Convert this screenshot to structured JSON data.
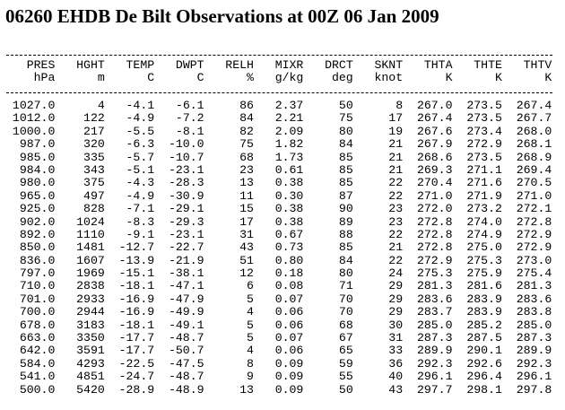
{
  "title": "06260 EHDB De Bilt Observations at 00Z 06 Jan 2009",
  "table": {
    "columns": [
      {
        "name": "PRES",
        "unit": "hPa"
      },
      {
        "name": "HGHT",
        "unit": "m"
      },
      {
        "name": "TEMP",
        "unit": "C"
      },
      {
        "name": "DWPT",
        "unit": "C"
      },
      {
        "name": "RELH",
        "unit": "%"
      },
      {
        "name": "MIXR",
        "unit": "g/kg"
      },
      {
        "name": "DRCT",
        "unit": "deg"
      },
      {
        "name": "SKNT",
        "unit": "knot"
      },
      {
        "name": "THTA",
        "unit": "K"
      },
      {
        "name": "THTE",
        "unit": "K"
      },
      {
        "name": "THTV",
        "unit": "K"
      }
    ],
    "rows": [
      [
        "1027.0",
        "4",
        "-4.1",
        "-6.1",
        "86",
        "2.37",
        "50",
        "8",
        "267.0",
        "273.5",
        "267.4"
      ],
      [
        "1012.0",
        "122",
        "-4.9",
        "-7.2",
        "84",
        "2.21",
        "75",
        "17",
        "267.4",
        "273.5",
        "267.7"
      ],
      [
        "1000.0",
        "217",
        "-5.5",
        "-8.1",
        "82",
        "2.09",
        "80",
        "19",
        "267.6",
        "273.4",
        "268.0"
      ],
      [
        "987.0",
        "320",
        "-6.3",
        "-10.0",
        "75",
        "1.82",
        "84",
        "21",
        "267.9",
        "272.9",
        "268.1"
      ],
      [
        "985.0",
        "335",
        "-5.7",
        "-10.7",
        "68",
        "1.73",
        "85",
        "21",
        "268.6",
        "273.5",
        "268.9"
      ],
      [
        "984.0",
        "343",
        "-5.1",
        "-23.1",
        "23",
        "0.61",
        "85",
        "21",
        "269.3",
        "271.1",
        "269.4"
      ],
      [
        "980.0",
        "375",
        "-4.3",
        "-28.3",
        "13",
        "0.38",
        "85",
        "22",
        "270.4",
        "271.6",
        "270.5"
      ],
      [
        "965.0",
        "497",
        "-4.9",
        "-30.9",
        "11",
        "0.30",
        "87",
        "22",
        "271.0",
        "271.9",
        "271.0"
      ],
      [
        "925.0",
        "828",
        "-7.1",
        "-29.1",
        "15",
        "0.38",
        "90",
        "23",
        "272.0",
        "273.2",
        "272.1"
      ],
      [
        "902.0",
        "1024",
        "-8.3",
        "-29.3",
        "17",
        "0.38",
        "89",
        "23",
        "272.8",
        "274.0",
        "272.8"
      ],
      [
        "892.0",
        "1110",
        "-9.1",
        "-23.1",
        "31",
        "0.67",
        "88",
        "22",
        "272.8",
        "274.9",
        "272.9"
      ],
      [
        "850.0",
        "1481",
        "-12.7",
        "-22.7",
        "43",
        "0.73",
        "85",
        "21",
        "272.8",
        "275.0",
        "272.9"
      ],
      [
        "836.0",
        "1607",
        "-13.9",
        "-21.9",
        "51",
        "0.80",
        "84",
        "22",
        "272.9",
        "275.3",
        "273.0"
      ],
      [
        "797.0",
        "1969",
        "-15.1",
        "-38.1",
        "12",
        "0.18",
        "80",
        "24",
        "275.3",
        "275.9",
        "275.4"
      ],
      [
        "710.0",
        "2838",
        "-18.1",
        "-47.1",
        "6",
        "0.08",
        "71",
        "29",
        "281.3",
        "281.6",
        "281.3"
      ],
      [
        "701.0",
        "2933",
        "-16.9",
        "-47.9",
        "5",
        "0.07",
        "70",
        "29",
        "283.6",
        "283.9",
        "283.6"
      ],
      [
        "700.0",
        "2944",
        "-16.9",
        "-49.9",
        "4",
        "0.06",
        "70",
        "29",
        "283.7",
        "283.9",
        "283.8"
      ],
      [
        "678.0",
        "3183",
        "-18.1",
        "-49.1",
        "5",
        "0.06",
        "68",
        "30",
        "285.0",
        "285.2",
        "285.0"
      ],
      [
        "663.0",
        "3350",
        "-17.7",
        "-48.7",
        "5",
        "0.07",
        "67",
        "31",
        "287.3",
        "287.5",
        "287.3"
      ],
      [
        "642.0",
        "3591",
        "-17.7",
        "-50.7",
        "4",
        "0.06",
        "65",
        "33",
        "289.9",
        "290.1",
        "289.9"
      ],
      [
        "584.0",
        "4293",
        "-22.5",
        "-47.5",
        "8",
        "0.09",
        "59",
        "36",
        "292.3",
        "292.6",
        "292.3"
      ],
      [
        "541.0",
        "4851",
        "-24.7",
        "-48.7",
        "9",
        "0.09",
        "55",
        "40",
        "296.1",
        "296.4",
        "296.1"
      ],
      [
        "500.0",
        "5420",
        "-28.9",
        "-48.9",
        "13",
        "0.09",
        "50",
        "43",
        "297.7",
        "298.1",
        "297.8"
      ]
    ]
  }
}
